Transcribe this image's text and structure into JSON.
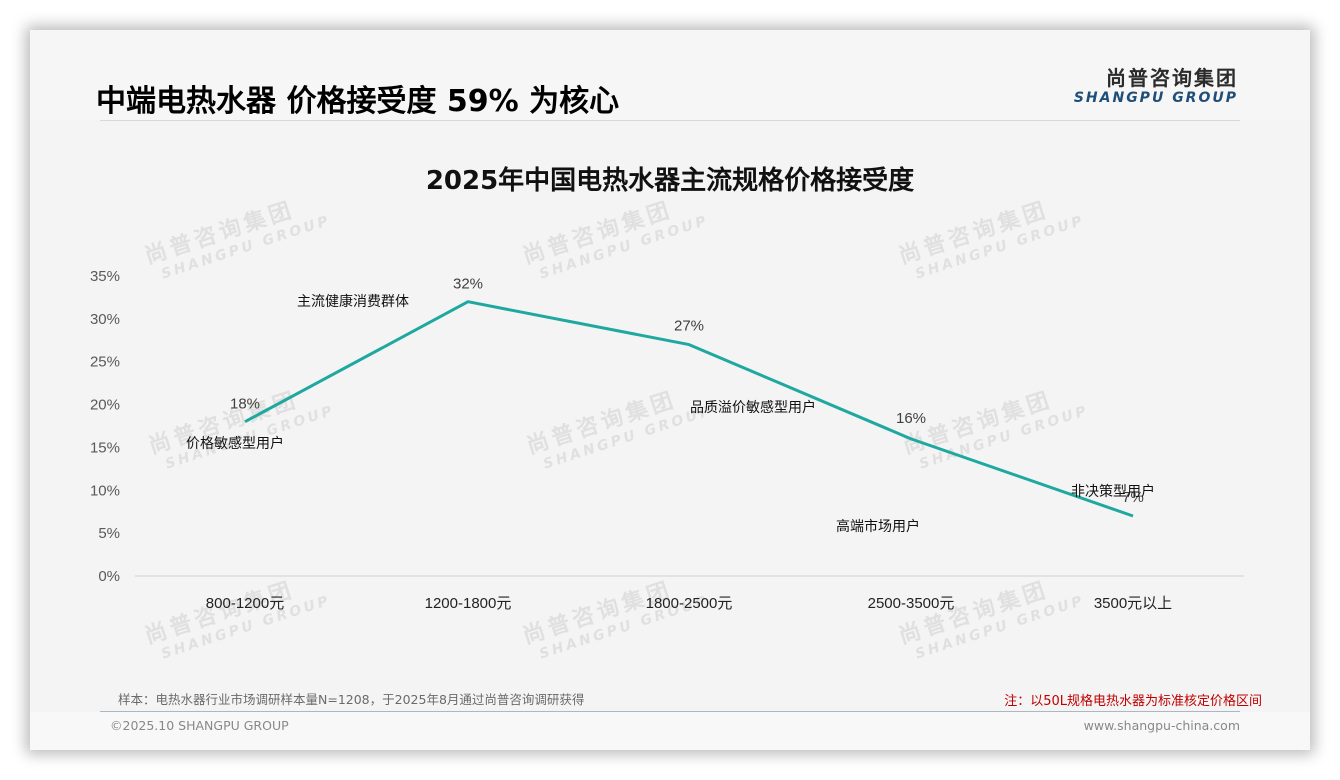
{
  "slide": {
    "title": "中端电热水器 价格接受度 59% 为核心",
    "logo": {
      "cn": "尚普咨询集团",
      "en": "SHANGPU GROUP"
    },
    "watermark": {
      "cn": "尚普咨询集团",
      "en": "SHANGPU GROUP"
    },
    "footer": {
      "sample_note": "样本：电热水器行业市场调研样本量N=1208，于2025年8月通过尚普咨询调研获得",
      "red_note": "注：以50L规格电热水器为标准核定价格区间",
      "copyright": "©2025.10 SHANGPU GROUP",
      "website": "www.shangpu-china.com"
    },
    "colors": {
      "line": "#1fa8a0",
      "note_red": "#c00000",
      "logo_blue": "#1f4e79"
    }
  },
  "chart_data": {
    "type": "line",
    "title": "2025年中国电热水器主流规格价格接受度",
    "xlabel": "",
    "ylabel": "",
    "categories": [
      "800-1200元",
      "1200-1800元",
      "1800-2500元",
      "2500-3500元",
      "3500元以上"
    ],
    "series": [
      {
        "name": "价格接受度",
        "values": [
          18,
          32,
          27,
          16,
          7
        ],
        "color": "#1fa8a0"
      }
    ],
    "value_labels": [
      "18%",
      "32%",
      "27%",
      "16%",
      "7%"
    ],
    "annotations": [
      "价格敏感型用户",
      "主流健康消费群体",
      "品质溢价敏感型用户",
      "高端市场用户",
      "非决策型用户"
    ],
    "y_ticks": [
      "0%",
      "5%",
      "10%",
      "15%",
      "20%",
      "25%",
      "30%",
      "35%"
    ],
    "ylim": [
      0,
      35
    ],
    "grid": false,
    "legend": "none"
  }
}
